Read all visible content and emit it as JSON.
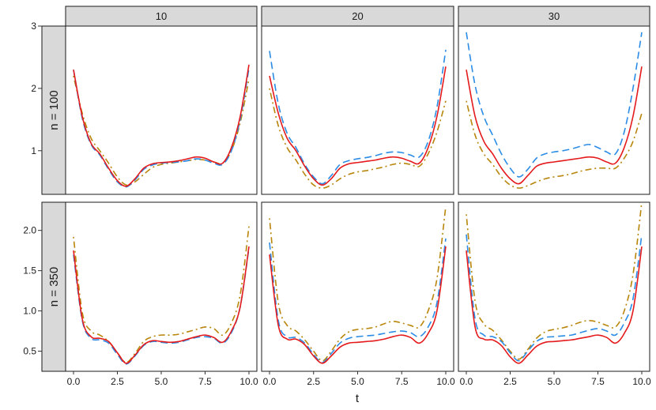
{
  "chart_data": {
    "type": "line",
    "layout": "facet-grid",
    "column_facets": [
      "10",
      "20",
      "30"
    ],
    "row_facets": [
      "n = 100",
      "n = 350"
    ],
    "xlabel": "t",
    "ylabel": "",
    "xlim": [
      0,
      10
    ],
    "x_ticks": [
      "0.0",
      "2.5",
      "5.0",
      "7.5",
      "10.0"
    ],
    "rows": [
      {
        "label": "n = 100",
        "ylim": [
          0.3,
          3.0
        ],
        "y_ticks": [
          "1",
          "2",
          "3"
        ]
      },
      {
        "label": "n = 350",
        "ylim": [
          0.25,
          2.35
        ],
        "y_ticks": [
          "0.5",
          "1.0",
          "1.5",
          "2.0"
        ]
      }
    ],
    "x": [
      0,
      0.5,
      1,
      1.5,
      2,
      2.5,
      3,
      3.5,
      4,
      4.5,
      5,
      5.5,
      6,
      6.5,
      7,
      7.5,
      8,
      8.5,
      9,
      9.5,
      10
    ],
    "series_styles": [
      {
        "color": "#e41a1c",
        "dash": "solid"
      },
      {
        "color": "#2b8ce6",
        "dash": "long-dash"
      },
      {
        "color": "#b8860b",
        "dash": "dot-dash"
      }
    ],
    "panels": [
      {
        "row": 0,
        "col": 0,
        "series": [
          {
            "values": [
              2.3,
              1.55,
              1.12,
              0.95,
              0.72,
              0.52,
              0.43,
              0.55,
              0.72,
              0.79,
              0.81,
              0.82,
              0.84,
              0.87,
              0.9,
              0.88,
              0.82,
              0.8,
              1.05,
              1.55,
              2.38
            ]
          },
          {
            "values": [
              2.3,
              1.52,
              1.1,
              0.93,
              0.7,
              0.5,
              0.42,
              0.53,
              0.7,
              0.77,
              0.8,
              0.81,
              0.82,
              0.84,
              0.87,
              0.85,
              0.8,
              0.78,
              1.0,
              1.5,
              2.32
            ]
          },
          {
            "values": [
              2.2,
              1.6,
              1.2,
              1.0,
              0.8,
              0.58,
              0.45,
              0.5,
              0.62,
              0.73,
              0.78,
              0.8,
              0.82,
              0.84,
              0.86,
              0.85,
              0.82,
              0.8,
              1.0,
              1.45,
              2.15
            ]
          }
        ]
      },
      {
        "row": 0,
        "col": 1,
        "series": [
          {
            "values": [
              2.2,
              1.6,
              1.2,
              1.0,
              0.75,
              0.55,
              0.45,
              0.55,
              0.72,
              0.79,
              0.81,
              0.83,
              0.85,
              0.88,
              0.9,
              0.88,
              0.83,
              0.8,
              1.05,
              1.55,
              2.35
            ]
          },
          {
            "values": [
              2.6,
              1.75,
              1.28,
              1.05,
              0.78,
              0.58,
              0.47,
              0.6,
              0.78,
              0.84,
              0.87,
              0.89,
              0.92,
              0.96,
              0.98,
              0.97,
              0.93,
              0.9,
              1.15,
              1.7,
              2.62
            ]
          },
          {
            "values": [
              2.0,
              1.4,
              1.05,
              0.85,
              0.62,
              0.45,
              0.4,
              0.45,
              0.55,
              0.62,
              0.66,
              0.68,
              0.71,
              0.74,
              0.78,
              0.8,
              0.78,
              0.75,
              0.95,
              1.3,
              1.8
            ]
          }
        ]
      },
      {
        "row": 0,
        "col": 2,
        "series": [
          {
            "values": [
              2.3,
              1.55,
              1.15,
              0.95,
              0.72,
              0.55,
              0.47,
              0.6,
              0.75,
              0.8,
              0.82,
              0.84,
              0.86,
              0.88,
              0.9,
              0.88,
              0.82,
              0.8,
              1.05,
              1.55,
              2.35
            ]
          },
          {
            "values": [
              2.9,
              2.05,
              1.55,
              1.25,
              0.95,
              0.72,
              0.58,
              0.7,
              0.88,
              0.95,
              0.98,
              1.0,
              1.03,
              1.07,
              1.1,
              1.05,
              0.98,
              0.95,
              1.3,
              2.0,
              2.9
            ]
          },
          {
            "values": [
              1.8,
              1.25,
              0.95,
              0.78,
              0.58,
              0.45,
              0.4,
              0.44,
              0.5,
              0.55,
              0.58,
              0.6,
              0.63,
              0.67,
              0.7,
              0.72,
              0.72,
              0.72,
              0.88,
              1.15,
              1.6
            ]
          }
        ]
      },
      {
        "row": 1,
        "col": 0,
        "series": [
          {
            "values": [
              1.75,
              0.9,
              0.68,
              0.66,
              0.62,
              0.48,
              0.35,
              0.45,
              0.58,
              0.63,
              0.62,
              0.61,
              0.62,
              0.65,
              0.68,
              0.7,
              0.67,
              0.61,
              0.75,
              1.05,
              1.8
            ]
          },
          {
            "values": [
              1.7,
              0.88,
              0.66,
              0.64,
              0.6,
              0.46,
              0.34,
              0.44,
              0.57,
              0.62,
              0.61,
              0.6,
              0.61,
              0.64,
              0.67,
              0.68,
              0.66,
              0.6,
              0.73,
              1.05,
              1.78
            ]
          },
          {
            "values": [
              1.92,
              0.98,
              0.75,
              0.7,
              0.62,
              0.48,
              0.36,
              0.47,
              0.62,
              0.68,
              0.7,
              0.7,
              0.71,
              0.74,
              0.77,
              0.8,
              0.78,
              0.7,
              0.85,
              1.2,
              2.05
            ]
          }
        ]
      },
      {
        "row": 1,
        "col": 1,
        "series": [
          {
            "values": [
              1.7,
              0.82,
              0.65,
              0.65,
              0.58,
              0.44,
              0.35,
              0.44,
              0.55,
              0.6,
              0.61,
              0.62,
              0.63,
              0.65,
              0.68,
              0.7,
              0.67,
              0.6,
              0.72,
              1.0,
              1.8
            ]
          },
          {
            "values": [
              1.85,
              0.88,
              0.68,
              0.67,
              0.6,
              0.46,
              0.36,
              0.47,
              0.6,
              0.66,
              0.68,
              0.69,
              0.7,
              0.72,
              0.74,
              0.75,
              0.73,
              0.68,
              0.8,
              1.1,
              1.9
            ]
          },
          {
            "values": [
              2.15,
              1.1,
              0.82,
              0.75,
              0.64,
              0.5,
              0.38,
              0.5,
              0.65,
              0.74,
              0.77,
              0.78,
              0.8,
              0.84,
              0.87,
              0.85,
              0.82,
              0.8,
              1.0,
              1.4,
              2.3
            ]
          }
        ]
      },
      {
        "row": 1,
        "col": 2,
        "series": [
          {
            "values": [
              1.75,
              0.8,
              0.65,
              0.64,
              0.57,
              0.43,
              0.35,
              0.45,
              0.56,
              0.61,
              0.62,
              0.63,
              0.64,
              0.66,
              0.68,
              0.7,
              0.67,
              0.6,
              0.72,
              1.0,
              1.8
            ]
          },
          {
            "values": [
              1.95,
              0.9,
              0.7,
              0.68,
              0.62,
              0.48,
              0.38,
              0.5,
              0.62,
              0.67,
              0.68,
              0.69,
              0.7,
              0.73,
              0.76,
              0.78,
              0.75,
              0.7,
              0.85,
              1.15,
              1.95
            ]
          },
          {
            "values": [
              2.2,
              1.12,
              0.84,
              0.76,
              0.64,
              0.5,
              0.4,
              0.52,
              0.66,
              0.74,
              0.77,
              0.79,
              0.82,
              0.86,
              0.88,
              0.86,
              0.82,
              0.8,
              1.0,
              1.45,
              2.35
            ]
          }
        ]
      }
    ]
  }
}
